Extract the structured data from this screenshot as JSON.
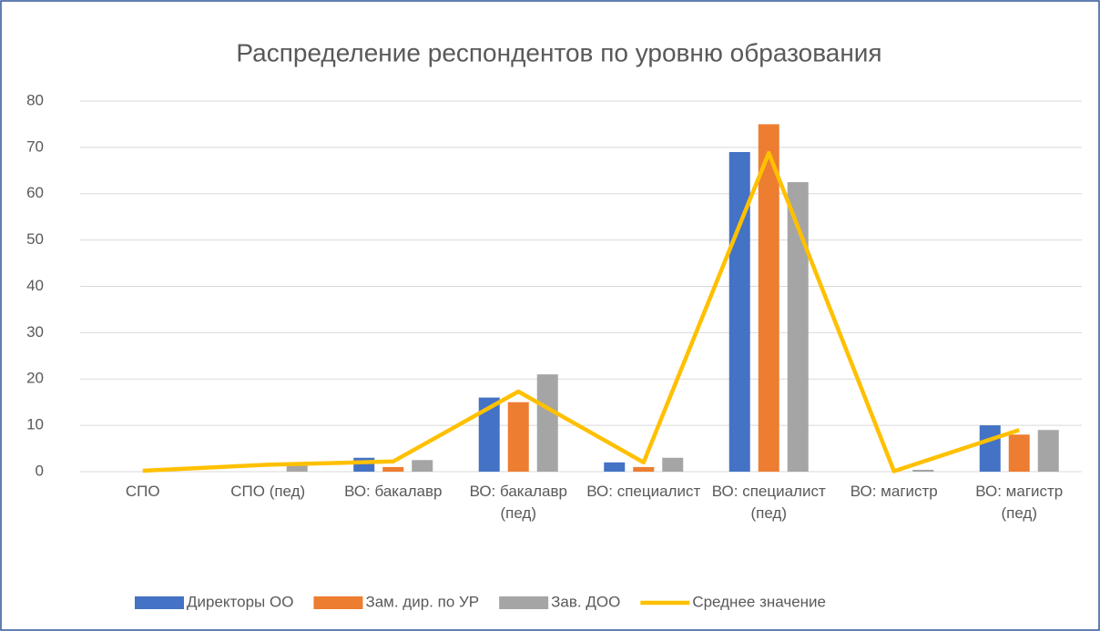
{
  "chart_data": {
    "type": "bar_line",
    "title": "Распределение респондентов по уровню образования",
    "categories": [
      "СПО",
      "СПО (пед)",
      "ВО: бакалавр",
      "ВО: бакалавр (пед)",
      "ВО: специалист",
      "ВО: специалист (пед)",
      "ВО: магистр",
      "ВО: магистр (пед)"
    ],
    "series": [
      {
        "name": "Директоры ОО",
        "color": "#4472c4",
        "kind": "bar",
        "values": [
          0,
          0,
          3,
          16,
          2,
          69,
          0,
          10
        ]
      },
      {
        "name": "Зам. дир. по УР",
        "color": "#ed7d31",
        "kind": "bar",
        "values": [
          0,
          0,
          1,
          15,
          1,
          75,
          0,
          8
        ]
      },
      {
        "name": "Зав. ДОО",
        "color": "#a5a5a5",
        "kind": "bar",
        "values": [
          0,
          1.5,
          2.5,
          21,
          3,
          62.5,
          0.4,
          9
        ]
      },
      {
        "name": "Среднее значение",
        "color": "#ffc000",
        "kind": "line",
        "values": [
          0.2,
          1.5,
          2.2,
          17.3,
          2,
          68.8,
          0.1,
          9
        ]
      }
    ],
    "ylim": [
      0,
      80
    ],
    "yticks": [
      0,
      10,
      20,
      30,
      40,
      50,
      60,
      70,
      80
    ],
    "grid": true,
    "legend": "bottom"
  }
}
